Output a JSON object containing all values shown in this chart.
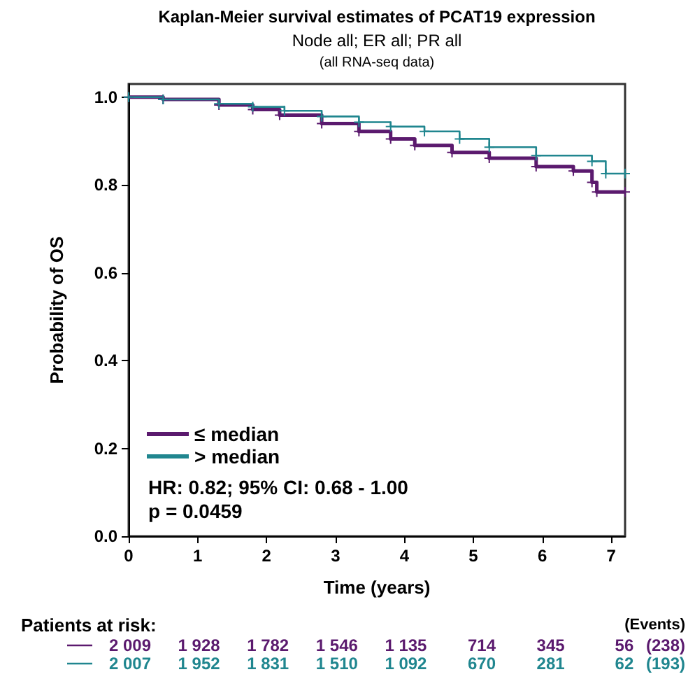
{
  "chart_data": {
    "type": "step",
    "title": "Kaplan-Meier survival estimates of PCAT19 expression",
    "subtitle": "Node all; ER all; PR all\n(all RNA-seq data)",
    "xlabel": "Time (years)",
    "ylabel": "Probability of OS",
    "series": [
      {
        "name": "≤ median",
        "color": "#5b1a6e",
        "x": [
          0,
          0.5,
          1.31,
          1.8,
          2.19,
          2.8,
          3.34,
          3.8,
          4.15,
          4.69,
          5.23,
          5.91,
          6.45,
          6.72,
          6.79,
          7.2
        ],
        "values": [
          1.0,
          0.995,
          0.982,
          0.972,
          0.959,
          0.94,
          0.922,
          0.905,
          0.89,
          0.874,
          0.861,
          0.842,
          0.832,
          0.806,
          0.784,
          0.784
        ]
      },
      {
        "name": "> median",
        "color": "#20868f",
        "x": [
          0,
          0.5,
          1.31,
          1.8,
          2.26,
          2.8,
          3.34,
          3.8,
          4.29,
          4.8,
          5.23,
          5.91,
          6.72,
          6.92,
          7.2
        ],
        "values": [
          1.0,
          0.995,
          0.985,
          0.978,
          0.969,
          0.956,
          0.943,
          0.933,
          0.922,
          0.905,
          0.886,
          0.867,
          0.854,
          0.826,
          0.826
        ]
      }
    ],
    "xlim": [
      0,
      7.2
    ],
    "ylim": [
      0,
      1.03
    ],
    "xticks": [
      0,
      1,
      2,
      3,
      4,
      5,
      6,
      7
    ],
    "yticks": [
      {
        "value": 0,
        "label": "0.0"
      },
      {
        "value": 0.2,
        "label": "0.2"
      },
      {
        "value": 0.4,
        "label": "0.4"
      },
      {
        "value": 0.6,
        "label": "0.6"
      },
      {
        "value": 0.8,
        "label": "0.8"
      },
      {
        "value": 1,
        "label": "1.0"
      }
    ],
    "grid": false,
    "legend": "bottom left",
    "marker": "cross",
    "line_style": "solid",
    "annotations": [
      "HR: 0.82; 95% CI: 0.68 - 1.00",
      "p = 0.0459",
      "Patients at risk:",
      "(Events)",
      "2 009",
      "1 928",
      "1 782",
      "1 546",
      "1 135",
      "714",
      "345",
      "56",
      "(238)",
      "2 007",
      "1 952",
      "1 831",
      "1 510",
      "1 092",
      "670",
      "281",
      "62",
      "(193)"
    ]
  }
}
